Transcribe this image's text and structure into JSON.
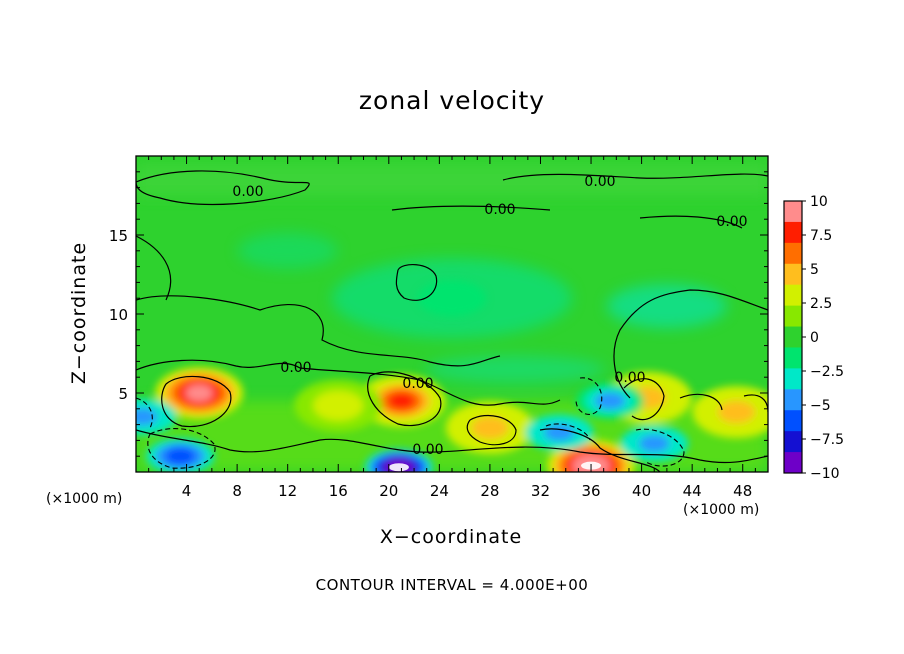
{
  "chart_data": {
    "type": "heatmap",
    "title": "zonal velocity",
    "xlabel": "X−coordinate",
    "ylabel": "Z−coordinate",
    "x_unit": "(×1000 m)",
    "y_unit": "(×1000 m)",
    "xlim": [
      0,
      50
    ],
    "ylim": [
      0,
      20
    ],
    "x_ticks": [
      4,
      8,
      12,
      16,
      20,
      24,
      28,
      32,
      36,
      40,
      44,
      48
    ],
    "y_ticks": [
      5,
      10,
      15
    ],
    "colorbar": {
      "range": [
        -10,
        10
      ],
      "tick_labels": [
        "10",
        "7.5",
        "5",
        "2.5",
        "0",
        "−2.5",
        "−5",
        "−7.5",
        "−10"
      ],
      "tick_values": [
        10,
        7.5,
        5,
        2.5,
        0,
        -2.5,
        -5,
        -7.5,
        -10
      ],
      "colors": [
        "#ff8c8c",
        "#ff1e00",
        "#ff6e00",
        "#ffbe1e",
        "#d2f000",
        "#88e800",
        "#2ed22e",
        "#00e46e",
        "#00e8c8",
        "#2896ff",
        "#0050ff",
        "#1410d2",
        "#6e00c8"
      ]
    },
    "contour_interval": "CONTOUR INTERVAL = 4.000E+00",
    "contour_labels": [
      "0.00",
      "0.00",
      "0.00",
      "0.00",
      "0.00",
      "0.00",
      "0.00",
      "0.00"
    ],
    "features": [
      {
        "kind": "max",
        "x": 5,
        "z": 5,
        "value": 8.5
      },
      {
        "kind": "max",
        "x": 21,
        "z": 4.5,
        "value": 8.0
      },
      {
        "kind": "max",
        "x": 36,
        "z": 0.4,
        "value": 10.0
      },
      {
        "kind": "max",
        "x": 28,
        "z": 2.8,
        "value": 5.0
      },
      {
        "kind": "max",
        "x": 16,
        "z": 4.2,
        "value": 3.5
      },
      {
        "kind": "max",
        "x": 40.5,
        "z": 4.7,
        "value": 5.0
      },
      {
        "kind": "max",
        "x": 47.5,
        "z": 3.8,
        "value": 5.0
      },
      {
        "kind": "min",
        "x": 20.8,
        "z": 0.3,
        "value": -10.0
      },
      {
        "kind": "min",
        "x": 3.5,
        "z": 1.0,
        "value": -5.5
      },
      {
        "kind": "min",
        "x": 33.5,
        "z": 2.5,
        "value": -5.0
      },
      {
        "kind": "min",
        "x": 41,
        "z": 1.8,
        "value": -5.0
      },
      {
        "kind": "min",
        "x": 37.5,
        "z": 4.5,
        "value": -4.0
      },
      {
        "kind": "min",
        "x": 0.5,
        "z": 3.5,
        "value": -5.0
      },
      {
        "kind": "min",
        "x": 25,
        "z": 11,
        "value": -1.5
      }
    ]
  }
}
